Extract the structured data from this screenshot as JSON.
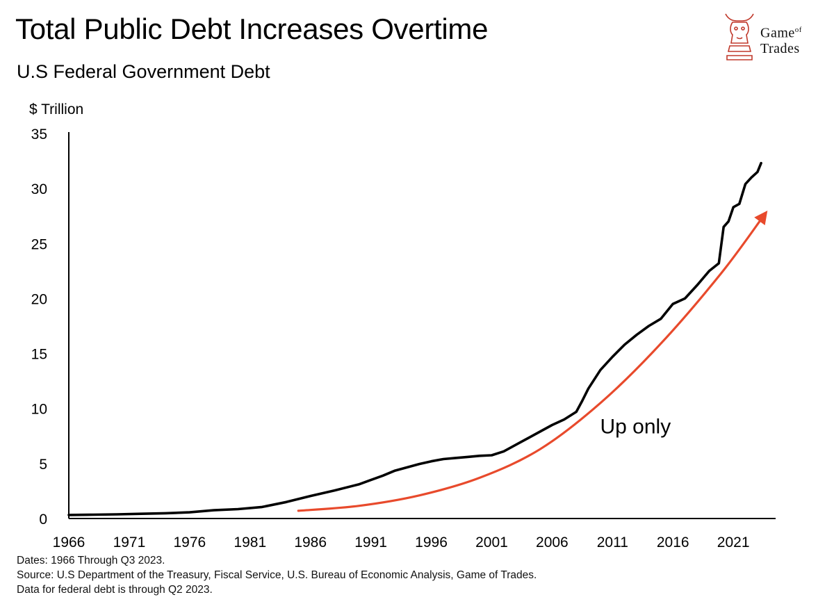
{
  "title": "Total Public Debt Increases Overtime",
  "subtitle": "U.S Federal Government Debt",
  "logo": {
    "icon": "bull-knight-chess-icon",
    "line1": "Game",
    "line1_small": "of",
    "line2": "Trades",
    "color": "#c0392b"
  },
  "notes": [
    "Dates: 1966 Through Q3 2023.",
    "Source: U.S Department of the Treasury, Fiscal Service, U.S. Bureau of Economic Analysis, Game of Trades.",
    "Data for federal debt is through Q2 2023."
  ],
  "chart_data": {
    "type": "line",
    "title": "Total Public Debt Increases Overtime",
    "ylabel": "$ Trillion",
    "xlabel": "",
    "xlim": [
      1966,
      2024.5
    ],
    "ylim": [
      0,
      35
    ],
    "x_ticks": [
      1966,
      1971,
      1976,
      1981,
      1986,
      1991,
      1996,
      2001,
      2006,
      2011,
      2016,
      2021
    ],
    "y_ticks": [
      0,
      5,
      10,
      15,
      20,
      25,
      30,
      35
    ],
    "grid": false,
    "series": [
      {
        "name": "U.S Federal Government Debt",
        "color": "#000000",
        "points": [
          [
            1966,
            0.32
          ],
          [
            1968,
            0.35
          ],
          [
            1970,
            0.38
          ],
          [
            1972,
            0.43
          ],
          [
            1974,
            0.48
          ],
          [
            1976,
            0.56
          ],
          [
            1978,
            0.75
          ],
          [
            1980,
            0.85
          ],
          [
            1982,
            1.05
          ],
          [
            1984,
            1.5
          ],
          [
            1986,
            2.05
          ],
          [
            1988,
            2.55
          ],
          [
            1990,
            3.1
          ],
          [
            1991,
            3.5
          ],
          [
            1992,
            3.9
          ],
          [
            1993,
            4.35
          ],
          [
            1994,
            4.65
          ],
          [
            1995,
            4.95
          ],
          [
            1996,
            5.2
          ],
          [
            1997,
            5.4
          ],
          [
            1998,
            5.5
          ],
          [
            1999,
            5.6
          ],
          [
            2000,
            5.7
          ],
          [
            2001,
            5.75
          ],
          [
            2002,
            6.1
          ],
          [
            2003,
            6.7
          ],
          [
            2004,
            7.3
          ],
          [
            2005,
            7.9
          ],
          [
            2006,
            8.5
          ],
          [
            2007,
            9.0
          ],
          [
            2008,
            9.7
          ],
          [
            2008.5,
            10.7
          ],
          [
            2009,
            11.8
          ],
          [
            2010,
            13.5
          ],
          [
            2011,
            14.7
          ],
          [
            2012,
            15.8
          ],
          [
            2013,
            16.7
          ],
          [
            2014,
            17.5
          ],
          [
            2015,
            18.15
          ],
          [
            2016,
            19.5
          ],
          [
            2017,
            20.0
          ],
          [
            2018,
            21.2
          ],
          [
            2019,
            22.5
          ],
          [
            2019.8,
            23.2
          ],
          [
            2020.2,
            26.5
          ],
          [
            2020.6,
            27.0
          ],
          [
            2021,
            28.3
          ],
          [
            2021.5,
            28.6
          ],
          [
            2022,
            30.4
          ],
          [
            2022.5,
            31.0
          ],
          [
            2023,
            31.5
          ],
          [
            2023.3,
            32.3
          ]
        ]
      },
      {
        "name": "Trend arrow",
        "color": "#e84a2c",
        "arrow": true,
        "points": [
          [
            1985,
            0.7
          ],
          [
            1990,
            1.15
          ],
          [
            1995,
            2.1
          ],
          [
            2000,
            3.7
          ],
          [
            2005,
            6.3
          ],
          [
            2010,
            10.5
          ],
          [
            2015,
            15.9
          ],
          [
            2020,
            22.3
          ],
          [
            2023.5,
            27.5
          ]
        ]
      }
    ],
    "annotations": [
      {
        "text": "Up only",
        "x": 2012.9,
        "y": 8.5
      }
    ]
  }
}
